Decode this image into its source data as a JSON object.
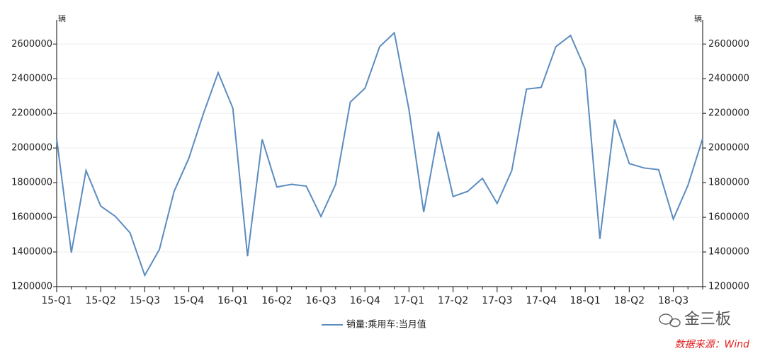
{
  "chart_data": {
    "type": "line",
    "y_unit": "辆",
    "y2_unit": "辆",
    "categories": [
      "15-Q1",
      null,
      null,
      "15-Q2",
      null,
      null,
      "15-Q3",
      null,
      null,
      "15-Q4",
      null,
      null,
      "16-Q1",
      null,
      null,
      "16-Q2",
      null,
      null,
      "16-Q3",
      null,
      null,
      "16-Q4",
      null,
      null,
      "17-Q1",
      null,
      null,
      "17-Q2",
      null,
      null,
      "17-Q3",
      null,
      null,
      "17-Q4",
      null,
      null,
      "18-Q1",
      null,
      null,
      "18-Q2",
      null,
      null,
      "18-Q3",
      null,
      null
    ],
    "series": [
      {
        "name": "销量:乘用车:当月值",
        "color": "#5b8cc0",
        "values": [
          2055000,
          1396000,
          1870000,
          1665000,
          1605000,
          1510000,
          1265000,
          1415000,
          1750000,
          1940000,
          2200000,
          2435000,
          2230000,
          1375000,
          2050000,
          1775000,
          1790000,
          1780000,
          1605000,
          1790000,
          2265000,
          2345000,
          2585000,
          2665000,
          2220000,
          1630000,
          2095000,
          1720000,
          1750000,
          1825000,
          1680000,
          1870000,
          2340000,
          2350000,
          2585000,
          2650000,
          2455000,
          1475000,
          2165000,
          1910000,
          1885000,
          1875000,
          1590000,
          1785000,
          2055000
        ]
      }
    ],
    "ylim": [
      1200000,
      2740000
    ],
    "yticks": [
      1200000,
      1400000,
      1600000,
      1800000,
      2000000,
      2200000,
      2400000,
      2600000
    ],
    "y2lim": [
      1200000,
      2740000
    ],
    "y2ticks": [
      1200000,
      1400000,
      1600000,
      1800000,
      2000000,
      2200000,
      2400000,
      2600000
    ],
    "grid": true,
    "legend": "bottom",
    "watermark": "金三板",
    "source": "数据来源：Wind"
  }
}
